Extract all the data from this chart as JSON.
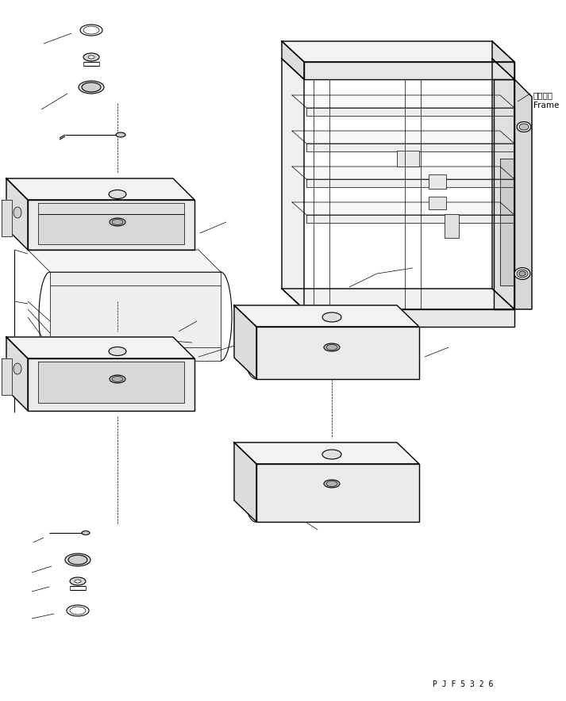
{
  "background_color": "#ffffff",
  "line_color": "#000000",
  "fig_width": 7.13,
  "fig_height": 8.84,
  "dpi": 100,
  "part_code": "P J F 5 3 2 6",
  "frame_label_jp": "フレーム",
  "frame_label_en": "Frame",
  "linewidth": 0.8,
  "thin_lw": 0.5,
  "thick_lw": 1.0
}
